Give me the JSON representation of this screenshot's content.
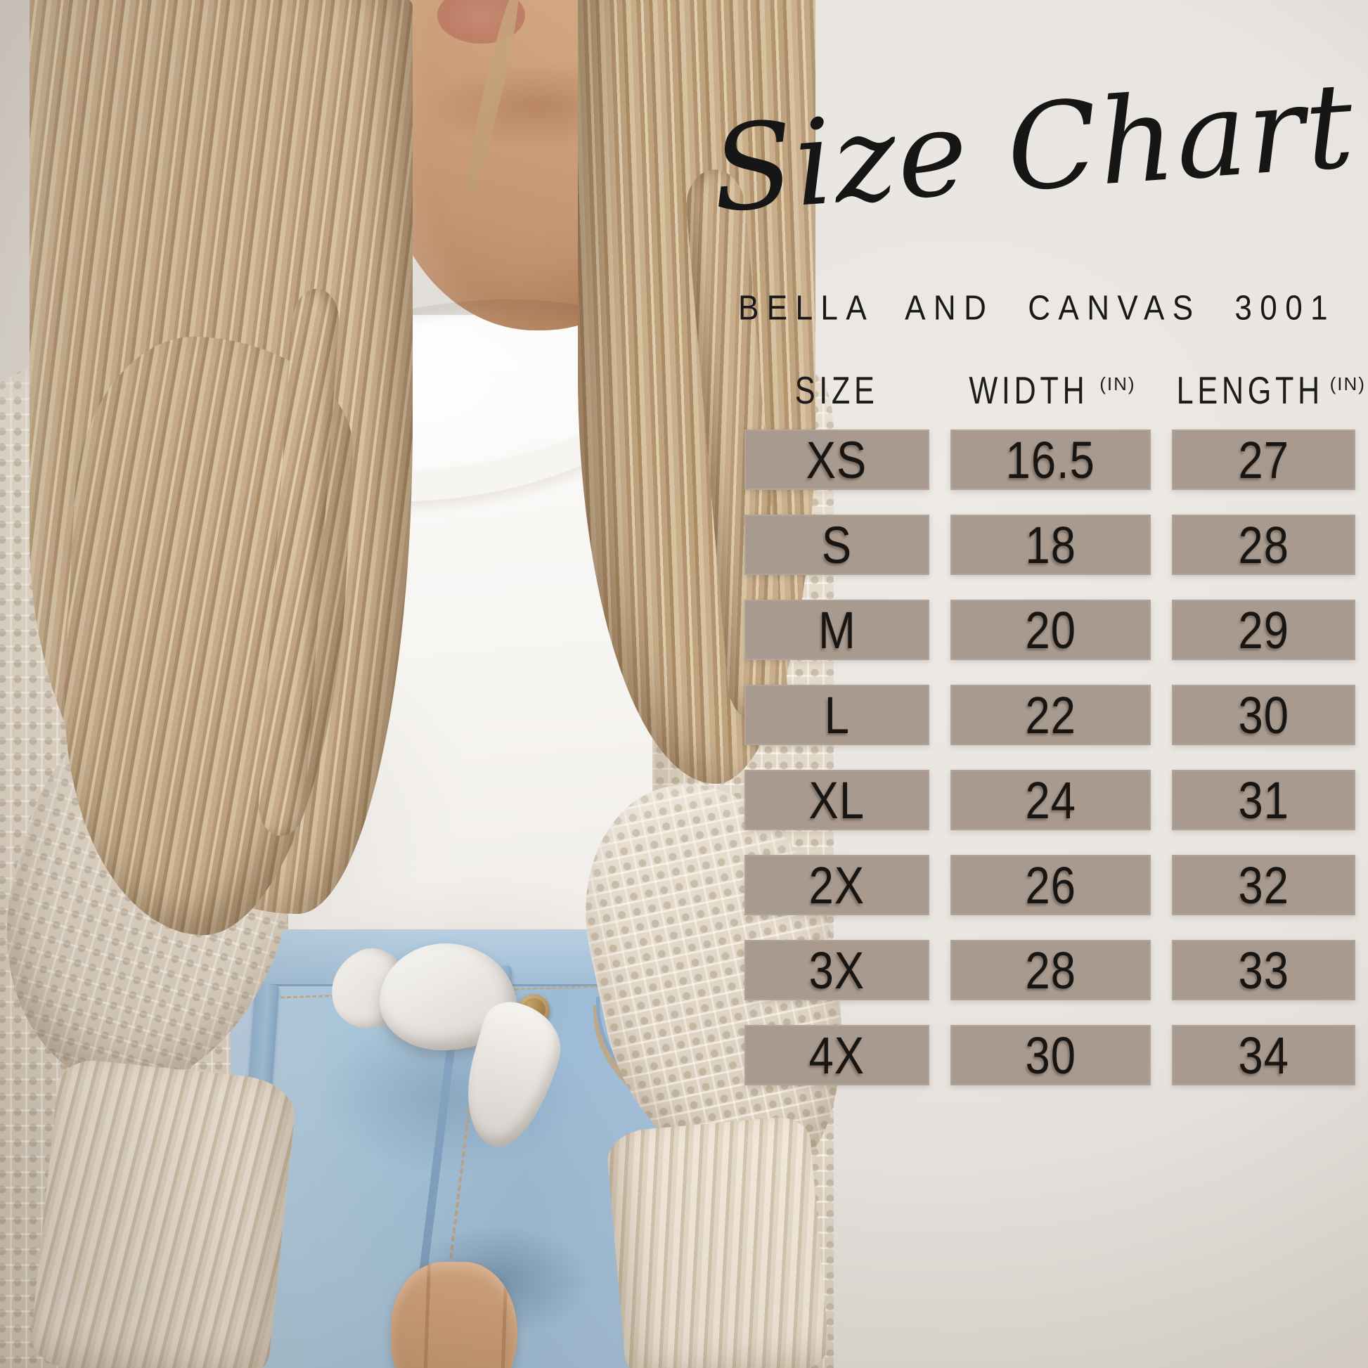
{
  "page": {
    "title": "Size Chart",
    "subtitle": "BELLA AND CANVAS 3001",
    "photo_alt": "Woman with long blonde wavy hair wearing a white knotted tee, cream waffle-knit cardigan and light wash jeans against a beige wall"
  },
  "table": {
    "headers": [
      {
        "label": "SIZE",
        "unit": ""
      },
      {
        "label": "WIDTH",
        "unit": "(IN)"
      },
      {
        "label": "LENGTH",
        "unit": "(IN)"
      }
    ]
  },
  "chart_data": {
    "type": "table",
    "title": "Size Chart",
    "subtitle": "BELLA AND CANVAS 3001",
    "columns": [
      "SIZE",
      "WIDTH (IN)",
      "LENGTH (IN)"
    ],
    "rows": [
      [
        "XS",
        "16.5",
        "27"
      ],
      [
        "S",
        "18",
        "28"
      ],
      [
        "M",
        "20",
        "29"
      ],
      [
        "L",
        "22",
        "30"
      ],
      [
        "XL",
        "24",
        "31"
      ],
      [
        "2X",
        "26",
        "32"
      ],
      [
        "3X",
        "28",
        "33"
      ],
      [
        "4X",
        "30",
        "34"
      ]
    ]
  },
  "colors": {
    "wall": "#e8e4e0",
    "cell_fill": "#a89a8e",
    "text": "#181512",
    "jeans": "#a5c0d7",
    "cardigan": "#e3d9ca",
    "hair": "#c2a683"
  }
}
